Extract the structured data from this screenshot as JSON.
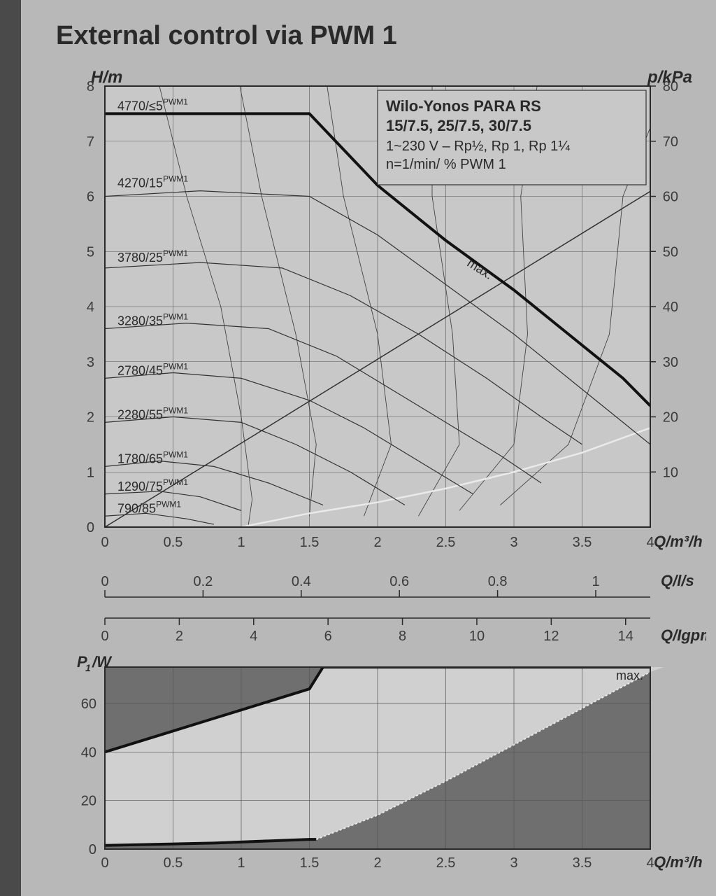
{
  "title": "External control via PWM 1",
  "product_box": {
    "line1": "Wilo-Yonos PARA RS",
    "line2": "15/7.5, 25/7.5, 30/7.5",
    "line3": "1~230 V – Rp½, Rp 1, Rp 1¼",
    "line4": "n=1/min/ % PWM 1"
  },
  "top_chart": {
    "bg": "#c8c8c8",
    "frame": "#2a2a2a",
    "grid": "#555",
    "x_axis": {
      "label": "Q/m³/h",
      "min": 0,
      "max": 4.0,
      "ticks": [
        0,
        0.5,
        1.0,
        1.5,
        2.0,
        2.5,
        3.0,
        3.5,
        4.0
      ]
    },
    "y_left": {
      "label": "H/m",
      "min": 0,
      "max": 8,
      "ticks": [
        0,
        1,
        2,
        3,
        4,
        5,
        6,
        7,
        8
      ]
    },
    "y_right": {
      "label": "p/kPa",
      "min": 0,
      "max": 80,
      "ticks": [
        10,
        20,
        30,
        40,
        50,
        60,
        70,
        80
      ]
    },
    "max_curve": {
      "label": "max.",
      "stroke": "#111",
      "width": 4,
      "points": [
        [
          0,
          7.5
        ],
        [
          1.5,
          7.5
        ],
        [
          2.0,
          6.2
        ],
        [
          2.5,
          5.2
        ],
        [
          3.0,
          4.3
        ],
        [
          3.4,
          3.5
        ],
        [
          3.8,
          2.7
        ],
        [
          4.0,
          2.2
        ]
      ]
    },
    "pump_curves": [
      {
        "label_main": "4770/≤5",
        "label_sup": "PWM1",
        "stroke": "#333",
        "width": 1.2,
        "points": [
          [
            0,
            7.5
          ],
          [
            1.5,
            7.5
          ],
          [
            2.0,
            6.2
          ],
          [
            2.5,
            5.2
          ],
          [
            3.0,
            4.3
          ],
          [
            3.4,
            3.5
          ],
          [
            3.8,
            2.7
          ],
          [
            4.0,
            2.2
          ]
        ],
        "label_y": 7.5
      },
      {
        "label_main": "4270/15",
        "label_sup": "PWM1",
        "stroke": "#333",
        "width": 1.2,
        "points": [
          [
            0,
            6.0
          ],
          [
            0.7,
            6.1
          ],
          [
            1.5,
            6.0
          ],
          [
            2.0,
            5.3
          ],
          [
            2.5,
            4.4
          ],
          [
            3.0,
            3.5
          ],
          [
            3.4,
            2.7
          ],
          [
            3.8,
            1.9
          ],
          [
            4.0,
            1.5
          ]
        ],
        "label_y": 6.1
      },
      {
        "label_main": "3780/25",
        "label_sup": "PWM1",
        "stroke": "#333",
        "width": 1.2,
        "points": [
          [
            0,
            4.7
          ],
          [
            0.7,
            4.8
          ],
          [
            1.3,
            4.7
          ],
          [
            1.8,
            4.2
          ],
          [
            2.3,
            3.5
          ],
          [
            2.8,
            2.7
          ],
          [
            3.2,
            2.0
          ],
          [
            3.5,
            1.5
          ]
        ],
        "label_y": 4.75
      },
      {
        "label_main": "3280/35",
        "label_sup": "PWM1",
        "stroke": "#333",
        "width": 1.2,
        "points": [
          [
            0,
            3.6
          ],
          [
            0.6,
            3.7
          ],
          [
            1.2,
            3.6
          ],
          [
            1.7,
            3.1
          ],
          [
            2.1,
            2.5
          ],
          [
            2.5,
            1.9
          ],
          [
            2.9,
            1.3
          ],
          [
            3.2,
            0.8
          ]
        ],
        "label_y": 3.6
      },
      {
        "label_main": "2780/45",
        "label_sup": "PWM1",
        "stroke": "#333",
        "width": 1.2,
        "points": [
          [
            0,
            2.7
          ],
          [
            0.5,
            2.8
          ],
          [
            1.0,
            2.7
          ],
          [
            1.5,
            2.3
          ],
          [
            1.9,
            1.8
          ],
          [
            2.3,
            1.2
          ],
          [
            2.7,
            0.6
          ]
        ],
        "label_y": 2.7
      },
      {
        "label_main": "2280/55",
        "label_sup": "PWM1",
        "stroke": "#333",
        "width": 1.2,
        "points": [
          [
            0,
            1.9
          ],
          [
            0.5,
            2.0
          ],
          [
            1.0,
            1.9
          ],
          [
            1.4,
            1.5
          ],
          [
            1.8,
            1.0
          ],
          [
            2.2,
            0.4
          ]
        ],
        "label_y": 1.9
      },
      {
        "label_main": "1780/65",
        "label_sup": "PWM1",
        "stroke": "#333",
        "width": 1.2,
        "points": [
          [
            0,
            1.1
          ],
          [
            0.4,
            1.2
          ],
          [
            0.8,
            1.1
          ],
          [
            1.2,
            0.8
          ],
          [
            1.6,
            0.4
          ]
        ],
        "label_y": 1.1
      },
      {
        "label_main": "1290/75",
        "label_sup": "PWM1",
        "stroke": "#333",
        "width": 1.2,
        "points": [
          [
            0,
            0.6
          ],
          [
            0.4,
            0.65
          ],
          [
            0.7,
            0.55
          ],
          [
            1.0,
            0.3
          ]
        ],
        "label_y": 0.6
      },
      {
        "label_main": "790/85",
        "label_sup": "PWM1",
        "stroke": "#333",
        "width": 1.2,
        "points": [
          [
            0,
            0.2
          ],
          [
            0.3,
            0.25
          ],
          [
            0.6,
            0.15
          ],
          [
            0.8,
            0.05
          ]
        ],
        "label_y": 0.2
      }
    ],
    "efficiency_curves": [
      {
        "stroke": "#444",
        "width": 0.9,
        "points": [
          [
            0.35,
            8.5
          ],
          [
            0.6,
            6.0
          ],
          [
            0.85,
            4.0
          ],
          [
            1.0,
            2.0
          ],
          [
            1.08,
            0.5
          ],
          [
            1.05,
            0
          ]
        ]
      },
      {
        "stroke": "#444",
        "width": 0.9,
        "points": [
          [
            0.95,
            8.5
          ],
          [
            1.15,
            6.0
          ],
          [
            1.4,
            3.5
          ],
          [
            1.55,
            1.5
          ],
          [
            1.5,
            0.2
          ]
        ]
      },
      {
        "stroke": "#444",
        "width": 0.9,
        "points": [
          [
            1.6,
            8.5
          ],
          [
            1.75,
            6.0
          ],
          [
            2.0,
            3.5
          ],
          [
            2.1,
            1.5
          ],
          [
            1.9,
            0.2
          ]
        ]
      },
      {
        "stroke": "#444",
        "width": 0.9,
        "points": [
          [
            2.4,
            8.5
          ],
          [
            2.4,
            6.0
          ],
          [
            2.55,
            3.5
          ],
          [
            2.6,
            1.5
          ],
          [
            2.3,
            0.2
          ]
        ]
      },
      {
        "stroke": "#444",
        "width": 0.9,
        "points": [
          [
            3.2,
            8.5
          ],
          [
            3.05,
            6.0
          ],
          [
            3.1,
            3.5
          ],
          [
            3.0,
            1.5
          ],
          [
            2.6,
            0.3
          ]
        ]
      },
      {
        "stroke": "#444",
        "width": 0.9,
        "points": [
          [
            4.2,
            8.5
          ],
          [
            3.8,
            6.0
          ],
          [
            3.7,
            3.5
          ],
          [
            3.4,
            1.5
          ],
          [
            2.9,
            0.4
          ]
        ]
      }
    ],
    "bottom_light_curve": {
      "stroke": "#eaeaea",
      "width": 2.5,
      "points": [
        [
          1.0,
          0
        ],
        [
          1.5,
          0.25
        ],
        [
          2.0,
          0.45
        ],
        [
          2.5,
          0.7
        ],
        [
          3.0,
          1.0
        ],
        [
          3.5,
          1.35
        ],
        [
          4.0,
          1.8
        ],
        [
          4.2,
          2.0
        ]
      ]
    },
    "straight_through": {
      "stroke": "#333",
      "width": 1.5,
      "points": [
        [
          0,
          0
        ],
        [
          4.4,
          6.7
        ]
      ]
    }
  },
  "mid_scales": {
    "ls": {
      "label": "Q/l/s",
      "ticks": [
        0,
        0.2,
        0.4,
        0.6,
        0.8,
        1.0
      ],
      "x_max": 4.0
    },
    "igpm": {
      "label": "Q/Igpm",
      "ticks": [
        0,
        2,
        4,
        6,
        8,
        10,
        12,
        14
      ],
      "x_max": 4.0
    }
  },
  "bottom_chart": {
    "bg_dark": "#6f6f6f",
    "bg_light": "#d0d0d0",
    "frame": "#2a2a2a",
    "grid": "#555",
    "x_axis": {
      "label": "Q/m³/h",
      "min": 0,
      "max": 4.0,
      "ticks": [
        0,
        0.5,
        1.0,
        1.5,
        2.0,
        2.5,
        3.0,
        3.5,
        4.0
      ]
    },
    "y_axis": {
      "label": "P₁/W",
      "min": 0,
      "max": 75,
      "ticks": [
        0,
        20,
        40,
        60
      ]
    },
    "max_label": "max.",
    "upper_power": {
      "stroke": "#111",
      "width": 4,
      "points": [
        [
          0,
          40
        ],
        [
          0.75,
          53
        ],
        [
          1.5,
          66
        ],
        [
          1.6,
          75
        ],
        [
          4.2,
          75
        ]
      ]
    },
    "lower_power": {
      "stroke": "#111",
      "width": 4,
      "points": [
        [
          0,
          1.5
        ],
        [
          0.8,
          2.5
        ],
        [
          1.5,
          4.0
        ],
        [
          1.55,
          4.0
        ]
      ]
    },
    "boundary_curve": {
      "stroke": "#e8e8e8",
      "width": 2,
      "points": [
        [
          1.55,
          4
        ],
        [
          2.0,
          14
        ],
        [
          2.5,
          28
        ],
        [
          3.0,
          43
        ],
        [
          3.5,
          58
        ],
        [
          4.0,
          73
        ],
        [
          4.1,
          75
        ]
      ]
    }
  },
  "font_sizes": {
    "title": 38,
    "axis": 24,
    "tick": 20,
    "curve": 18,
    "box_title": 22,
    "box_text": 20
  },
  "colors": {
    "page_bg": "#b8b8b8",
    "leftbar": "#4a4a4a",
    "text": "#2a2a2a"
  }
}
